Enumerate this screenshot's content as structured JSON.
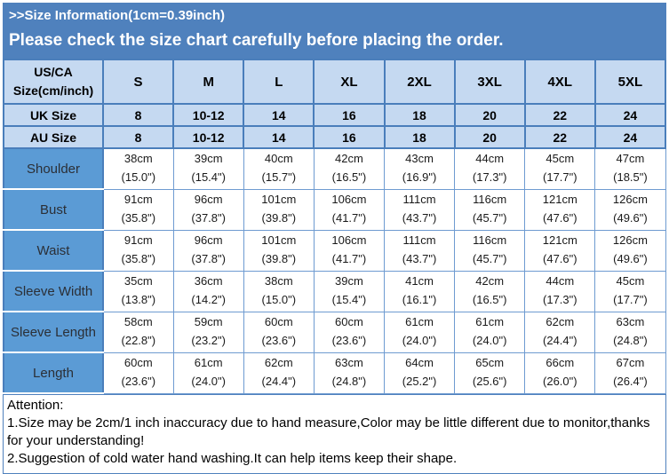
{
  "header": {
    "title": ">>Size Information(1cm=0.39inch)",
    "warning": "Please check the size chart carefully before placing the order."
  },
  "colors": {
    "banner_blue": "#4f81bd",
    "header_cell_blue": "#c5d9f1",
    "label_cell_blue": "#5b9bd5",
    "border_blue": "#4a7ebb",
    "data_border_blue": "#6e9bd1",
    "banner_text": "#ffffff",
    "table_text": "#000000"
  },
  "size_table": {
    "header_label_line1": "US/CA",
    "header_label_line2": "Size(cm/inch)",
    "sizes": [
      "S",
      "M",
      "L",
      "XL",
      "2XL",
      "3XL",
      "4XL",
      "5XL"
    ],
    "conversion_rows": [
      {
        "label": "UK Size",
        "values": [
          "8",
          "10-12",
          "14",
          "16",
          "18",
          "20",
          "22",
          "24"
        ]
      },
      {
        "label": "AU Size",
        "values": [
          "8",
          "10-12",
          "14",
          "16",
          "18",
          "20",
          "22",
          "24"
        ]
      }
    ],
    "measurement_rows": [
      {
        "label": "Shoulder",
        "cm": [
          "38cm",
          "39cm",
          "40cm",
          "42cm",
          "43cm",
          "44cm",
          "45cm",
          "47cm"
        ],
        "inch": [
          "(15.0\")",
          "(15.4\")",
          "(15.7\")",
          "(16.5\")",
          "(16.9\")",
          "(17.3\")",
          "(17.7\")",
          "(18.5\")"
        ]
      },
      {
        "label": "Bust",
        "cm": [
          "91cm",
          "96cm",
          "101cm",
          "106cm",
          "111cm",
          "116cm",
          "121cm",
          "126cm"
        ],
        "inch": [
          "(35.8\")",
          "(37.8\")",
          "(39.8\")",
          "(41.7\")",
          "(43.7\")",
          "(45.7\")",
          "(47.6\")",
          "(49.6\")"
        ]
      },
      {
        "label": "Waist",
        "cm": [
          "91cm",
          "96cm",
          "101cm",
          "106cm",
          "111cm",
          "116cm",
          "121cm",
          "126cm"
        ],
        "inch": [
          "(35.8\")",
          "(37.8\")",
          "(39.8\")",
          "(41.7\")",
          "(43.7\")",
          "(45.7\")",
          "(47.6\")",
          "(49.6\")"
        ]
      },
      {
        "label": "Sleeve Width",
        "cm": [
          "35cm",
          "36cm",
          "38cm",
          "39cm",
          "41cm",
          "42cm",
          "44cm",
          "45cm"
        ],
        "inch": [
          "(13.8\")",
          "(14.2\")",
          "(15.0\")",
          "(15.4\")",
          "(16.1\")",
          "(16.5\")",
          "(17.3\")",
          "(17.7\")"
        ]
      },
      {
        "label": "Sleeve Length",
        "cm": [
          "58cm",
          "59cm",
          "60cm",
          "60cm",
          "61cm",
          "61cm",
          "62cm",
          "63cm"
        ],
        "inch": [
          "(22.8\")",
          "(23.2\")",
          "(23.6\")",
          "(23.6\")",
          "(24.0\")",
          "(24.0\")",
          "(24.4\")",
          "(24.8\")"
        ]
      },
      {
        "label": "Length",
        "cm": [
          "60cm",
          "61cm",
          "62cm",
          "63cm",
          "64cm",
          "65cm",
          "66cm",
          "67cm"
        ],
        "inch": [
          "(23.6\")",
          "(24.0\")",
          "(24.4\")",
          "(24.8\")",
          "(25.2\")",
          "(25.6\")",
          "(26.0\")",
          "(26.4\")"
        ]
      }
    ]
  },
  "attention": {
    "heading": "Attention:",
    "notes": [
      "1.Size may be 2cm/1 inch inaccuracy due to hand measure,Color may be little different due to monitor,thanks for your understanding!",
      "2.Suggestion of cold water hand washing.It can help items keep their shape."
    ]
  }
}
